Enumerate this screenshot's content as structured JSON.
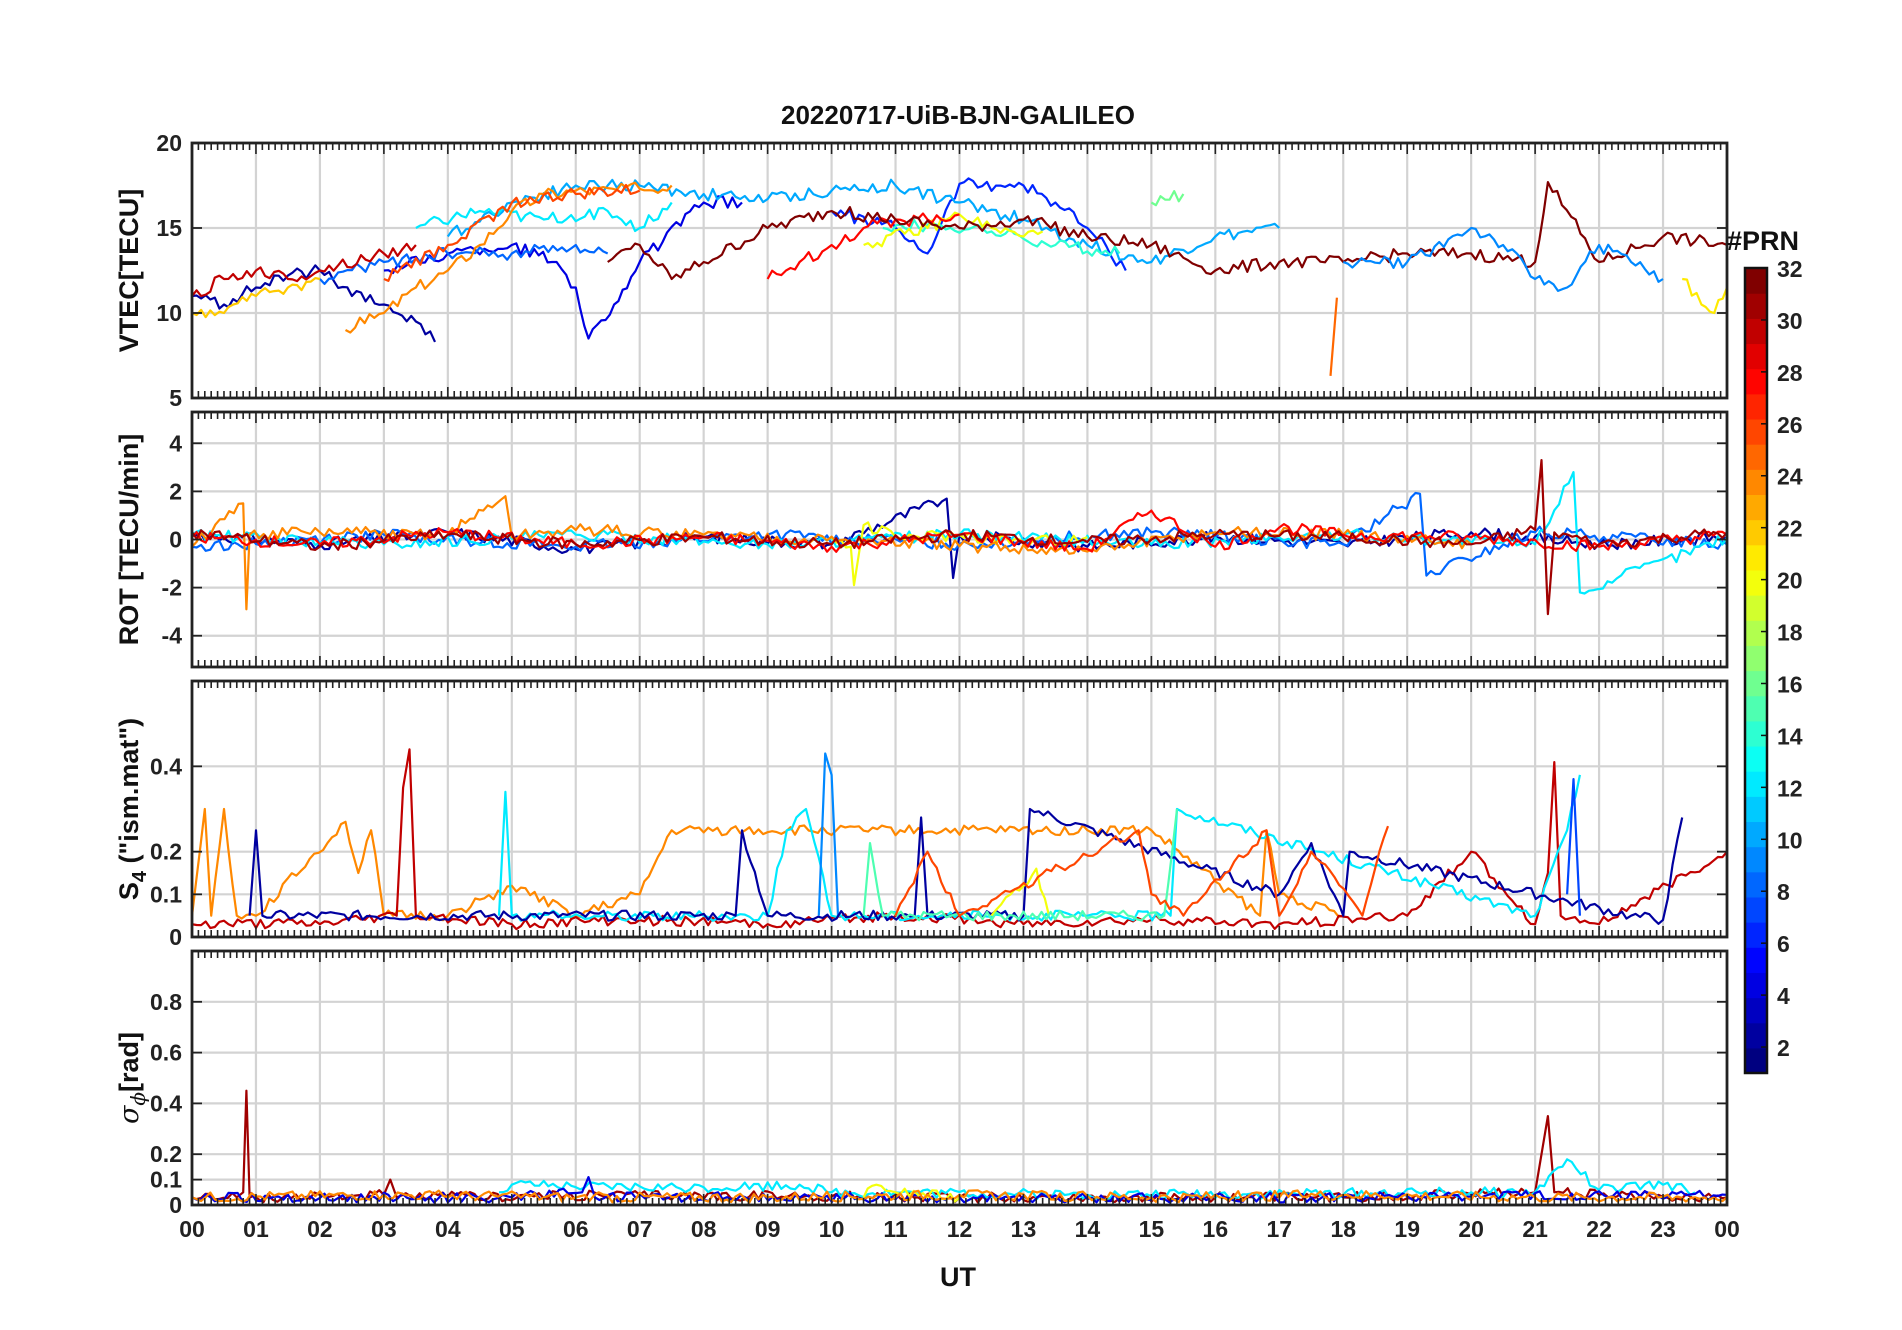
{
  "chart_data": [
    {
      "type": "line",
      "panel": "vtec",
      "title": "20220717-UiB-BJN-GALILEO",
      "xlabel": "",
      "ylabel": "VTEC[TECU]",
      "ylim": [
        5,
        20
      ],
      "yticks": [
        5,
        10,
        15,
        20
      ],
      "series": [
        {
          "prn": 2,
          "x": [
            0.0,
            0.5,
            1.0,
            1.5,
            2.0,
            2.5,
            3.0,
            3.5,
            3.8
          ],
          "y": [
            11.0,
            10.5,
            11.5,
            12.2,
            12.5,
            11.0,
            10.5,
            9.5,
            8.3
          ]
        },
        {
          "prn": 4,
          "x": [
            3.0,
            4.0,
            5.0,
            5.7,
            6.0,
            6.2,
            6.6,
            7.0,
            8.0,
            8.6
          ],
          "y": [
            12.5,
            13.5,
            14.0,
            13.0,
            11.5,
            8.5,
            10.5,
            13.0,
            16.5,
            16.5
          ]
        },
        {
          "prn": 6,
          "x": [
            10.0,
            11.0,
            11.5,
            12.0,
            13.0,
            13.5,
            14.0,
            14.6
          ],
          "y": [
            16.0,
            15.0,
            13.5,
            17.6,
            17.5,
            16.5,
            15.0,
            12.5
          ]
        },
        {
          "prn": 8,
          "x": [
            2.0,
            3.0,
            4.0,
            5.0,
            6.0,
            6.5
          ],
          "y": [
            12.0,
            13.0,
            13.5,
            13.5,
            14.0,
            13.5
          ]
        },
        {
          "prn": 10,
          "x": [
            4.0,
            5.0,
            6.0,
            7.0,
            8.0,
            9.0,
            10.0,
            11.0,
            12.0,
            13.0,
            14.0,
            15.0,
            16.0,
            17.0
          ],
          "y": [
            14.5,
            16.5,
            17.5,
            17.5,
            17.0,
            16.7,
            17.2,
            17.5,
            16.5,
            15.5,
            14.0,
            13.0,
            14.5,
            15.0
          ]
        },
        {
          "prn": 12,
          "x": [
            3.5,
            4.5,
            5.5,
            6.5,
            7.0,
            7.5
          ],
          "y": [
            15.0,
            16.0,
            15.5,
            16.0,
            15.0,
            16.5
          ]
        },
        {
          "prn": 14,
          "x": [
            10.8,
            11.5,
            12.5,
            13.5,
            14.5
          ],
          "y": [
            15.0,
            15.2,
            14.8,
            14.0,
            13.5
          ]
        },
        {
          "prn": 16,
          "x": [
            15.0,
            15.5
          ],
          "y": [
            16.5,
            17.0
          ]
        },
        {
          "prn": 20,
          "x": [
            10.5,
            11.5,
            12.0,
            12.5,
            13.0,
            13.3
          ],
          "y": [
            14.0,
            15.0,
            15.8,
            15.0,
            14.5,
            14.8
          ]
        },
        {
          "prn": 22,
          "x": [
            0.0,
            0.5,
            1.0,
            1.5,
            2.0
          ],
          "y": [
            10.0,
            10.0,
            11.0,
            11.5,
            12.0
          ]
        },
        {
          "prn": 24,
          "x": [
            2.4,
            3.0,
            3.5,
            4.0,
            4.5,
            5.0,
            5.5,
            6.0,
            7.0,
            7.5
          ],
          "y": [
            9.0,
            10.0,
            11.5,
            12.5,
            14.0,
            16.0,
            17.0,
            17.2,
            17.3,
            17.5
          ]
        },
        {
          "prn": 25,
          "x": [
            17.8,
            17.9
          ],
          "y": [
            6.3,
            10.9
          ]
        },
        {
          "prn": 26,
          "x": [
            3.0,
            4.0,
            5.0,
            6.0,
            7.0
          ],
          "y": [
            12.0,
            14.0,
            16.5,
            17.0,
            17.2
          ]
        },
        {
          "prn": 28,
          "x": [
            9.0,
            9.5,
            10.0,
            10.5,
            11.0,
            11.5,
            12.0
          ],
          "y": [
            12.0,
            13.0,
            14.0,
            15.0,
            15.5,
            15.5,
            15.8
          ]
        },
        {
          "prn": 30,
          "x": [
            0.0,
            0.5,
            1.0,
            1.5,
            2.0,
            3.0,
            3.5
          ],
          "y": [
            11.0,
            12.0,
            12.5,
            12.0,
            12.5,
            13.5,
            14.0
          ]
        },
        {
          "prn": 32,
          "x": [
            6.5,
            7.0,
            7.5,
            8.0,
            9.0,
            10.0,
            11.0,
            12.0,
            13.0,
            14.0,
            15.0,
            16.0,
            17.0,
            18.0,
            19.0,
            20.0,
            21.0,
            21.2,
            22.0,
            23.0,
            24.0
          ],
          "y": [
            13.0,
            14.0,
            12.0,
            13.0,
            15.0,
            16.0,
            15.5,
            15.0,
            15.5,
            14.5,
            14.0,
            12.5,
            13.0,
            13.0,
            13.5,
            13.5,
            13.0,
            17.7,
            13.0,
            14.5,
            14.0
          ]
        },
        {
          "prn": 9,
          "x": [
            18.0,
            19.0,
            20.0,
            20.5,
            21.0,
            21.5,
            22.0,
            22.5,
            23.0
          ],
          "y": [
            13.0,
            13.0,
            15.0,
            14.0,
            12.0,
            11.5,
            14.0,
            13.0,
            12.0
          ]
        },
        {
          "prn": 21,
          "x": [
            23.3,
            23.6,
            23.8,
            24.0
          ],
          "y": [
            12.0,
            10.5,
            10.0,
            11.5
          ]
        }
      ]
    },
    {
      "type": "line",
      "panel": "rot",
      "xlabel": "",
      "ylabel": "ROT [TECU/min]",
      "ylim": [
        -5.3,
        5.3
      ],
      "yticks": [
        -4,
        -2,
        0,
        2,
        4
      ],
      "series": [
        {
          "prn": 2,
          "x": [
            0.0,
            2.0,
            4.0,
            6.0,
            8.0,
            10.0,
            11.8,
            11.9,
            12.0,
            14.0,
            16.0,
            18.0,
            20.0,
            22.0,
            24.0
          ],
          "y": [
            0.2,
            -0.2,
            0.3,
            -0.4,
            0.1,
            -0.2,
            1.7,
            -1.6,
            0.2,
            -0.3,
            0.1,
            -0.2,
            0.3,
            -0.2,
            0.1
          ]
        },
        {
          "prn": 8,
          "x": [
            0.0,
            3.0,
            6.0,
            9.0,
            12.0,
            15.0,
            18.0,
            19.2,
            19.3,
            21.0,
            24.0
          ],
          "y": [
            -0.3,
            0.2,
            -0.3,
            0.2,
            -0.2,
            0.3,
            -0.2,
            1.9,
            -1.5,
            0.3,
            -0.2
          ]
        },
        {
          "prn": 12,
          "x": [
            0.0,
            3.0,
            6.0,
            9.0,
            12.0,
            15.0,
            18.0,
            21.0,
            21.6,
            21.7,
            24.0
          ],
          "y": [
            0.2,
            -0.2,
            0.2,
            -0.2,
            0.2,
            -0.2,
            0.2,
            -0.2,
            2.8,
            -2.2,
            0.1
          ]
        },
        {
          "prn": 20,
          "x": [
            10.0,
            10.3,
            10.35,
            10.5,
            11.0,
            12.0,
            13.0,
            14.0
          ],
          "y": [
            0.1,
            -0.3,
            -1.9,
            0.6,
            0.1,
            0.2,
            -0.1,
            0.1
          ]
        },
        {
          "prn": 24,
          "x": [
            0.0,
            0.8,
            0.85,
            0.9,
            2.0,
            4.0,
            4.9,
            5.0,
            6.0,
            8.0,
            14.0,
            16.0,
            18.0,
            20.0
          ],
          "y": [
            -0.3,
            1.5,
            -2.9,
            0.2,
            0.3,
            0.2,
            1.8,
            0.1,
            0.4,
            0.2,
            -0.5,
            0.3,
            0.2,
            -0.2
          ]
        },
        {
          "prn": 28,
          "x": [
            0.0,
            2.0,
            4.0,
            6.0,
            8.0,
            10.0,
            12.0,
            14.0,
            15.0,
            16.0,
            17.0,
            18.0,
            20.0,
            22.0,
            24.0
          ],
          "y": [
            0.1,
            -0.2,
            0.3,
            -0.2,
            0.1,
            -0.3,
            0.2,
            -0.4,
            1.2,
            -0.3,
            0.5,
            0.2,
            0.1,
            -0.3,
            0.2
          ]
        },
        {
          "prn": 31,
          "x": [
            0.0,
            2.0,
            4.0,
            6.0,
            8.0,
            10.0,
            12.0,
            14.0,
            16.0,
            18.0,
            20.0,
            21.0,
            21.1,
            21.2,
            21.3,
            22.0,
            24.0
          ],
          "y": [
            0.3,
            -0.3,
            0.2,
            -0.2,
            0.1,
            -0.2,
            0.2,
            -0.1,
            0.2,
            0.1,
            -0.2,
            0.4,
            3.3,
            -3.1,
            0.3,
            -0.2,
            0.3
          ]
        }
      ]
    },
    {
      "type": "line",
      "panel": "s4",
      "xlabel": "",
      "ylabel": "S4 (\"ism.mat\")",
      "ylim": [
        0,
        0.6
      ],
      "yticks": [
        0,
        0.1,
        0.2,
        0.4
      ],
      "series": [
        {
          "prn": 24,
          "x": [
            0.0,
            0.2,
            0.3,
            0.5,
            0.7,
            1.0,
            2.4,
            2.6,
            2.8,
            3.0,
            4.0,
            5.0,
            6.0,
            7.0,
            7.5,
            15.0,
            16.7,
            16.8,
            17.0,
            18.0
          ],
          "y": [
            0.05,
            0.3,
            0.05,
            0.3,
            0.05,
            0.05,
            0.27,
            0.15,
            0.25,
            0.05,
            0.05,
            0.12,
            0.05,
            0.1,
            0.25,
            0.25,
            0.05,
            0.25,
            0.1,
            0.05
          ]
        },
        {
          "prn": 30,
          "x": [
            0.0,
            2.0,
            3.2,
            3.3,
            3.4,
            3.5,
            5.0,
            7.0,
            9.0,
            11.0,
            13.0,
            15.0,
            17.0,
            19.0,
            20.0,
            21.0,
            21.2,
            21.3,
            21.4,
            22.0,
            24.0
          ],
          "y": [
            0.03,
            0.03,
            0.05,
            0.35,
            0.44,
            0.05,
            0.03,
            0.04,
            0.03,
            0.05,
            0.03,
            0.04,
            0.03,
            0.05,
            0.2,
            0.03,
            0.15,
            0.41,
            0.05,
            0.03,
            0.2
          ]
        },
        {
          "prn": 12,
          "x": [
            4.8,
            4.9,
            5.0,
            9.0,
            9.3,
            9.6,
            10.0,
            10.5,
            14.0,
            15.3,
            15.4,
            21.0,
            21.5,
            21.7
          ],
          "y": [
            0.05,
            0.34,
            0.05,
            0.05,
            0.25,
            0.3,
            0.05,
            0.05,
            0.05,
            0.05,
            0.3,
            0.05,
            0.25,
            0.38
          ]
        },
        {
          "prn": 9,
          "x": [
            9.8,
            9.9,
            10.0,
            10.1
          ],
          "y": [
            0.05,
            0.43,
            0.38,
            0.05
          ]
        },
        {
          "prn": 2,
          "x": [
            0.9,
            1.0,
            1.1,
            8.5,
            8.6,
            9.0,
            11.3,
            11.4,
            11.5,
            13.0,
            13.1,
            17.0,
            17.5,
            18.0,
            18.1,
            22.5,
            23.0,
            23.3
          ],
          "y": [
            0.05,
            0.25,
            0.05,
            0.05,
            0.25,
            0.05,
            0.05,
            0.28,
            0.05,
            0.05,
            0.3,
            0.1,
            0.22,
            0.05,
            0.2,
            0.05,
            0.04,
            0.28
          ]
        },
        {
          "prn": 20,
          "x": [
            12.5,
            12.8,
            13.0,
            13.2,
            13.4
          ],
          "y": [
            0.05,
            0.1,
            0.12,
            0.16,
            0.05
          ]
        },
        {
          "prn": 15,
          "x": [
            10.5,
            10.6,
            10.8,
            15.2,
            15.4
          ],
          "y": [
            0.05,
            0.22,
            0.05,
            0.05,
            0.3
          ]
        },
        {
          "prn": 26,
          "x": [
            11.0,
            11.5,
            12.0,
            14.8,
            15.0,
            15.5,
            16.8,
            17.0,
            17.5,
            18.3,
            18.7
          ],
          "y": [
            0.05,
            0.2,
            0.05,
            0.25,
            0.1,
            0.05,
            0.25,
            0.05,
            0.2,
            0.05,
            0.26
          ]
        },
        {
          "prn": 7,
          "x": [
            21.5,
            21.6,
            21.7
          ],
          "y": [
            0.1,
            0.37,
            0.05
          ]
        }
      ]
    },
    {
      "type": "line",
      "panel": "sigma_phi",
      "xlabel": "UT",
      "ylabel": "σϕ[rad]",
      "ylim": [
        0,
        1
      ],
      "yticks": [
        0,
        0.1,
        0.2,
        0.4,
        0.6,
        0.8
      ],
      "xticklabels": [
        "00",
        "01",
        "02",
        "03",
        "04",
        "05",
        "06",
        "07",
        "08",
        "09",
        "10",
        "11",
        "12",
        "13",
        "14",
        "15",
        "16",
        "17",
        "18",
        "19",
        "20",
        "21",
        "22",
        "23",
        "00"
      ],
      "series": [
        {
          "prn": 31,
          "x": [
            0.0,
            0.7,
            0.8,
            0.85,
            0.9,
            3.0,
            3.1,
            3.2,
            7.0,
            12.0,
            18.0,
            21.0,
            21.1,
            21.2,
            21.3,
            22.0,
            24.0
          ],
          "y": [
            0.03,
            0.03,
            0.05,
            0.45,
            0.03,
            0.04,
            0.1,
            0.03,
            0.04,
            0.03,
            0.03,
            0.05,
            0.2,
            0.35,
            0.05,
            0.04,
            0.03
          ]
        },
        {
          "prn": 12,
          "x": [
            4.8,
            5.0,
            6.0,
            8.0,
            9.5,
            10.0,
            11.0,
            14.0,
            20.0,
            21.0,
            21.5,
            22.0,
            23.0,
            23.5
          ],
          "y": [
            0.05,
            0.08,
            0.07,
            0.07,
            0.08,
            0.05,
            0.05,
            0.04,
            0.05,
            0.05,
            0.18,
            0.06,
            0.08,
            0.05
          ]
        },
        {
          "prn": 4,
          "x": [
            0.0,
            5.0,
            6.1,
            6.2,
            6.3,
            12.0,
            18.0,
            24.0
          ],
          "y": [
            0.03,
            0.03,
            0.05,
            0.11,
            0.03,
            0.03,
            0.03,
            0.04
          ]
        },
        {
          "prn": 20,
          "x": [
            10.5,
            10.7,
            11.0,
            12.0
          ],
          "y": [
            0.03,
            0.08,
            0.05,
            0.03
          ]
        },
        {
          "prn": 24,
          "x": [
            0.0,
            3.0,
            6.0,
            9.0,
            12.0,
            15.0,
            18.0,
            21.0,
            24.0
          ],
          "y": [
            0.03,
            0.04,
            0.03,
            0.03,
            0.04,
            0.03,
            0.04,
            0.03,
            0.03
          ]
        }
      ]
    }
  ],
  "colorbar": {
    "title": "#PRN",
    "range": [
      1,
      32
    ],
    "ticks": [
      "2",
      "4",
      "6",
      "8",
      "10",
      "12",
      "14",
      "16",
      "18",
      "20",
      "22",
      "24",
      "26",
      "28",
      "30",
      "32"
    ]
  }
}
